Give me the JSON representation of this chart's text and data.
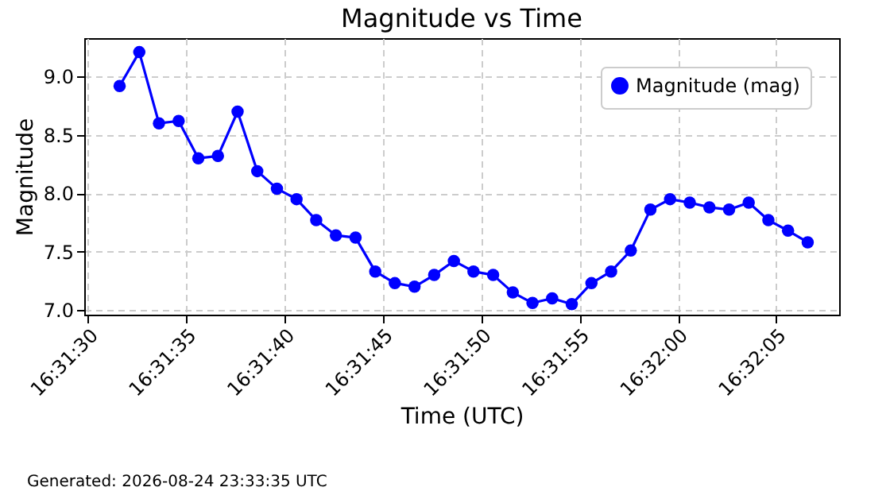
{
  "chart_data": {
    "type": "line",
    "title": "Magnitude vs Time",
    "xlabel": "Time (UTC)",
    "ylabel": "Magnitude",
    "x": [
      16.525444,
      16.525722,
      16.526,
      16.526278,
      16.526556,
      16.526833,
      16.527111,
      16.527389,
      16.527667,
      16.527944,
      16.528222,
      16.5285,
      16.528778,
      16.529056,
      16.529333,
      16.529611,
      16.529889,
      16.530167,
      16.530444,
      16.530722,
      16.531,
      16.531278,
      16.531556,
      16.531833,
      16.532111,
      16.532389,
      16.532667,
      16.532944,
      16.533222,
      16.5335,
      16.533778,
      16.534056,
      16.534333,
      16.534611,
      16.534889,
      16.535167
    ],
    "series": [
      {
        "name": "Magnitude (mag)",
        "color": "#0000ff",
        "values": [
          8.92,
          9.21,
          8.6,
          8.62,
          8.3,
          8.32,
          8.7,
          8.19,
          8.04,
          7.95,
          7.77,
          7.64,
          7.62,
          7.33,
          7.23,
          7.2,
          7.3,
          7.42,
          7.33,
          7.3,
          7.15,
          7.06,
          7.1,
          7.05,
          7.23,
          7.33,
          7.51,
          7.86,
          7.95,
          7.92,
          7.88,
          7.86,
          7.92,
          7.77,
          7.68,
          7.58
        ]
      }
    ],
    "xlim": [
      16.524944,
      16.535611
    ],
    "xticks": [
      {
        "value": 16.525,
        "label": "16:31:30"
      },
      {
        "value": 16.526389,
        "label": "16:31:35"
      },
      {
        "value": 16.527778,
        "label": "16:31:40"
      },
      {
        "value": 16.529167,
        "label": "16:31:45"
      },
      {
        "value": 16.530556,
        "label": "16:31:50"
      },
      {
        "value": 16.531944,
        "label": "16:31:55"
      },
      {
        "value": 16.533333,
        "label": "16:32:00"
      },
      {
        "value": 16.534722,
        "label": "16:32:05"
      }
    ],
    "ylim": [
      6.96,
      9.33
    ],
    "yticks": [
      {
        "value": 7,
        "label": "7.0"
      },
      {
        "value": 7.5,
        "label": "7.5"
      },
      {
        "value": 8,
        "label": "8.0"
      },
      {
        "value": 8.5,
        "label": "8.5"
      },
      {
        "value": 9,
        "label": "9.0"
      }
    ],
    "grid": true,
    "legend": "top right",
    "marker": "circle",
    "line_style": "solid",
    "annotations": [
      "Generated: 2026-08-24 23:33:35 UTC"
    ]
  }
}
